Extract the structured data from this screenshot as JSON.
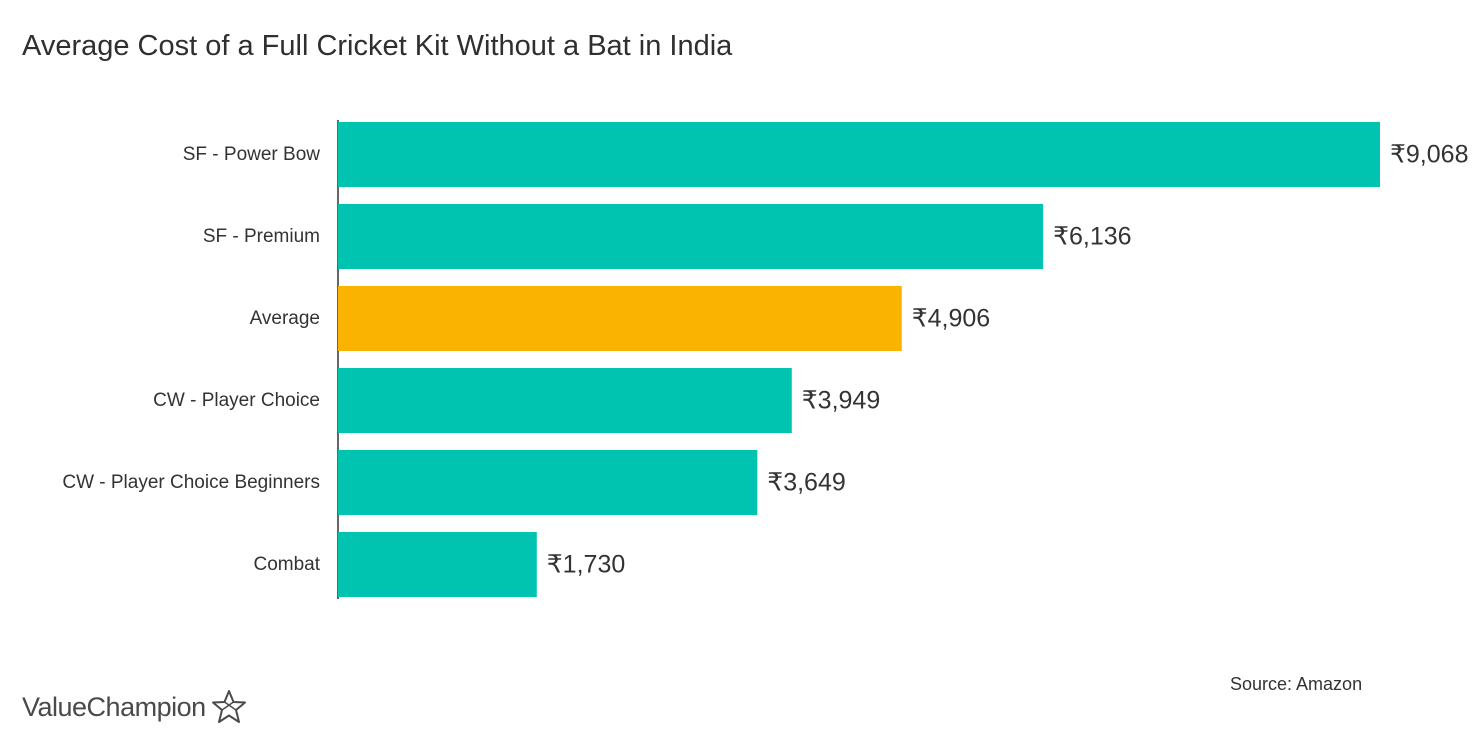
{
  "chart_data": {
    "type": "bar",
    "orientation": "horizontal",
    "title": "Average Cost of a Full Cricket Kit Without a Bat in India",
    "categories": [
      "SF - Power Bow",
      "SF - Premium",
      "Average",
      "CW - Player Choice",
      "CW - Player Choice Beginners",
      "Combat"
    ],
    "values": [
      9068,
      6136,
      4906,
      3949,
      3649,
      1730
    ],
    "value_labels": [
      "₹9,068",
      "₹6,136",
      "₹4,906",
      "₹3,949",
      "₹3,649",
      "₹1,730"
    ],
    "highlight_category": "Average",
    "colors": {
      "default": "#00c4b0",
      "highlight": "#f9b300",
      "axis": "#333333"
    },
    "xlim": [
      0,
      9068
    ],
    "grid": false,
    "legend": "none"
  },
  "source": "Source: Amazon",
  "brand": {
    "name": "ValueChampion",
    "icon": "star-outline-icon"
  }
}
